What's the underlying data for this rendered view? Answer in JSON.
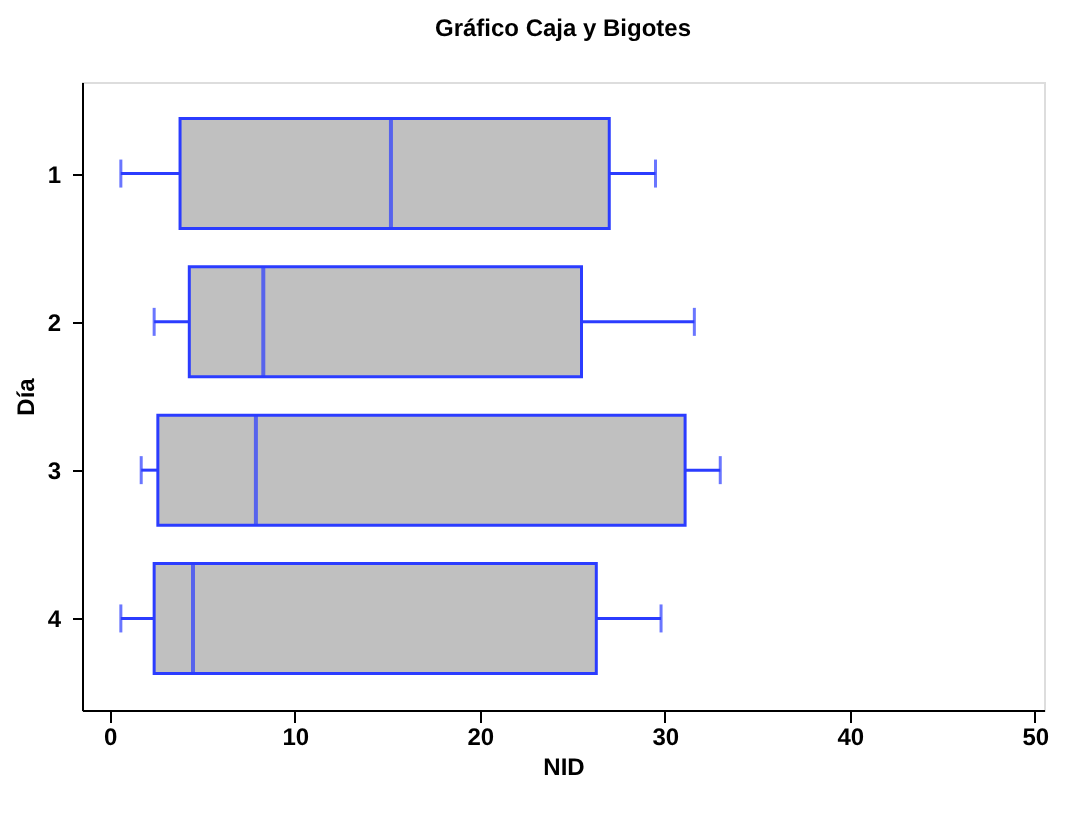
{
  "chart_data": {
    "type": "box",
    "title": "Gráfico Caja y Bigotes",
    "xlabel": "NID",
    "ylabel": "Día",
    "orientation": "horizontal",
    "categories": [
      "1",
      "2",
      "3",
      "4"
    ],
    "series": [
      {
        "color": "#2b3cff",
        "boxes": [
          {
            "low": 0.6,
            "q1": 3.8,
            "median": 15.2,
            "q3": 27.0,
            "high": 29.5
          },
          {
            "low": 2.4,
            "q1": 4.3,
            "median": 8.3,
            "q3": 25.5,
            "high": 31.6
          },
          {
            "low": 1.7,
            "q1": 2.6,
            "median": 7.9,
            "q3": 31.1,
            "high": 33.0
          },
          {
            "low": 0.6,
            "q1": 2.4,
            "median": 4.5,
            "q3": 26.3,
            "high": 29.8
          }
        ]
      }
    ],
    "xlim": [
      -1.5,
      50.5
    ],
    "xticks": [
      0,
      10,
      20,
      30,
      40,
      50
    ]
  }
}
